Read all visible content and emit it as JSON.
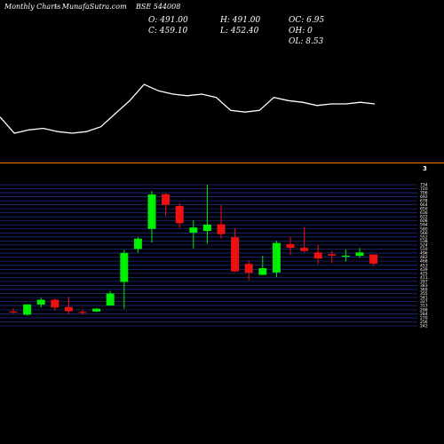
{
  "header": {
    "title": "Monthly Charts",
    "source": "MunafaSutra.com",
    "symbol": "BSE 544008"
  },
  "ohlc": {
    "open": "O: 491.00",
    "high": "H: 491.00",
    "oc": "OC: 6.95",
    "close": "C: 459.10",
    "low": "L: 452.40",
    "oh": "OH: 0",
    "ol": "OL: 8.53"
  },
  "divider_marker": "3",
  "colors": {
    "background": "#000000",
    "bull": "#00ee00",
    "bear": "#ee1111",
    "divider": "#ff7f00",
    "grid": "#1c2a88",
    "line": "#ffffff"
  },
  "chart_data": {
    "type": "candlestick",
    "y_ticks": [
      242,
      256,
      270,
      284,
      298,
      313,
      327,
      341,
      355,
      369,
      383,
      397,
      411,
      425,
      439,
      453,
      468,
      482,
      496,
      510,
      524,
      538,
      552,
      566,
      580,
      594,
      608,
      622,
      636,
      650,
      664,
      678,
      692,
      706,
      720,
      734
    ],
    "ylim": [
      242,
      734
    ],
    "candles": [
      {
        "o": 292,
        "h": 303,
        "l": 286,
        "c": 290
      },
      {
        "o": 281,
        "h": 317,
        "l": 278,
        "c": 317
      },
      {
        "o": 316,
        "h": 340,
        "l": 306,
        "c": 333
      },
      {
        "o": 333,
        "h": 338,
        "l": 295,
        "c": 306
      },
      {
        "o": 308,
        "h": 342,
        "l": 284,
        "c": 293
      },
      {
        "o": 291,
        "h": 298,
        "l": 281,
        "c": 290
      },
      {
        "o": 292,
        "h": 304,
        "l": 290,
        "c": 302
      },
      {
        "o": 313,
        "h": 364,
        "l": 313,
        "c": 355
      },
      {
        "o": 395,
        "h": 507,
        "l": 302,
        "c": 496
      },
      {
        "o": 510,
        "h": 551,
        "l": 497,
        "c": 546
      },
      {
        "o": 580,
        "h": 712,
        "l": 532,
        "c": 700
      },
      {
        "o": 701,
        "h": 703,
        "l": 625,
        "c": 664
      },
      {
        "o": 660,
        "h": 670,
        "l": 583,
        "c": 600
      },
      {
        "o": 567,
        "h": 610,
        "l": 512,
        "c": 585
      },
      {
        "o": 573,
        "h": 734,
        "l": 528,
        "c": 595
      },
      {
        "o": 596,
        "h": 663,
        "l": 546,
        "c": 562
      },
      {
        "o": 551,
        "h": 582,
        "l": 430,
        "c": 432
      },
      {
        "o": 458,
        "h": 470,
        "l": 400,
        "c": 427
      },
      {
        "o": 420,
        "h": 486,
        "l": 418,
        "c": 443
      },
      {
        "o": 428,
        "h": 539,
        "l": 412,
        "c": 531
      },
      {
        "o": 527,
        "h": 553,
        "l": 490,
        "c": 514
      },
      {
        "o": 514,
        "h": 588,
        "l": 498,
        "c": 503
      },
      {
        "o": 498,
        "h": 525,
        "l": 457,
        "c": 477
      },
      {
        "o": 492,
        "h": 503,
        "l": 460,
        "c": 487
      },
      {
        "o": 483,
        "h": 508,
        "l": 467,
        "c": 487
      },
      {
        "o": 486,
        "h": 513,
        "l": 479,
        "c": 498
      },
      {
        "o": 491,
        "h": 491,
        "l": 452,
        "c": 459
      }
    ],
    "overlay_line": [
      28,
      18,
      20,
      21,
      19,
      18,
      19,
      22,
      30,
      38,
      48,
      44,
      42,
      41,
      42,
      40,
      32,
      31,
      32,
      40,
      38,
      37,
      35,
      36,
      36,
      37,
      36
    ]
  }
}
